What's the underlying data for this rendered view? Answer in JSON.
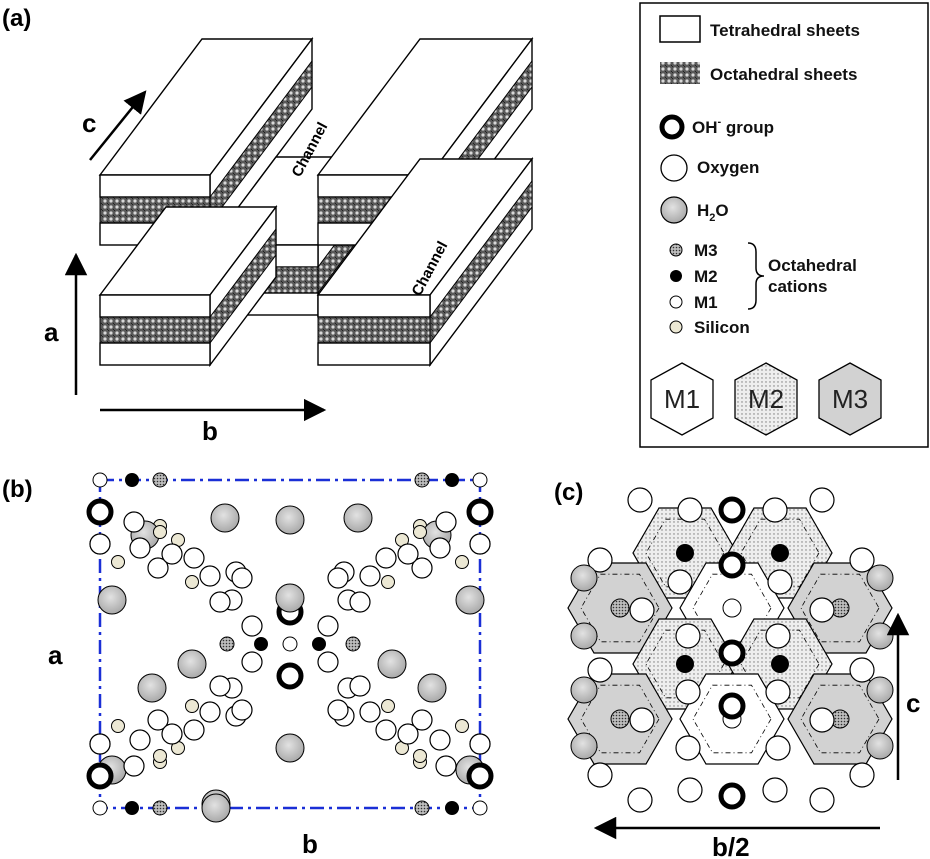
{
  "panels": {
    "a": {
      "tag": "(a)",
      "axis_c": "c",
      "axis_a": "a",
      "axis_b": "b",
      "channel_1": "Channel",
      "channel_2": "Channel"
    },
    "b": {
      "tag": "(b)",
      "axis_a": "a",
      "axis_b": "b"
    },
    "c": {
      "tag": "(c)",
      "axis_c": "c",
      "axis_b": "b/2"
    }
  },
  "legend": {
    "tetrahedral": "Tetrahedral sheets",
    "octahedral": "Octahedral sheets",
    "oh_main": "OH",
    "oh_sup": "-",
    "oh_rest": " group",
    "oxygen": "Oxygen",
    "h2o_h": "H",
    "h2o_sub": "2",
    "h2o_o": "O",
    "m3": "M3",
    "m2": "M2",
    "m1": "M1",
    "octahedral_cations_1": "Octahedral",
    "octahedral_cations_2": "cations",
    "silicon": "Silicon",
    "hex_m1": "M1",
    "hex_m2": "M2",
    "hex_m3": "M3"
  },
  "colors": {
    "cell_outline": "#1a2fd6",
    "h2o_fill": "#c8c8c8",
    "silicon_fill": "#ece8d4",
    "m3_hex_fill": "#d2d2d2",
    "m2_hex_fill": "#ededed"
  }
}
